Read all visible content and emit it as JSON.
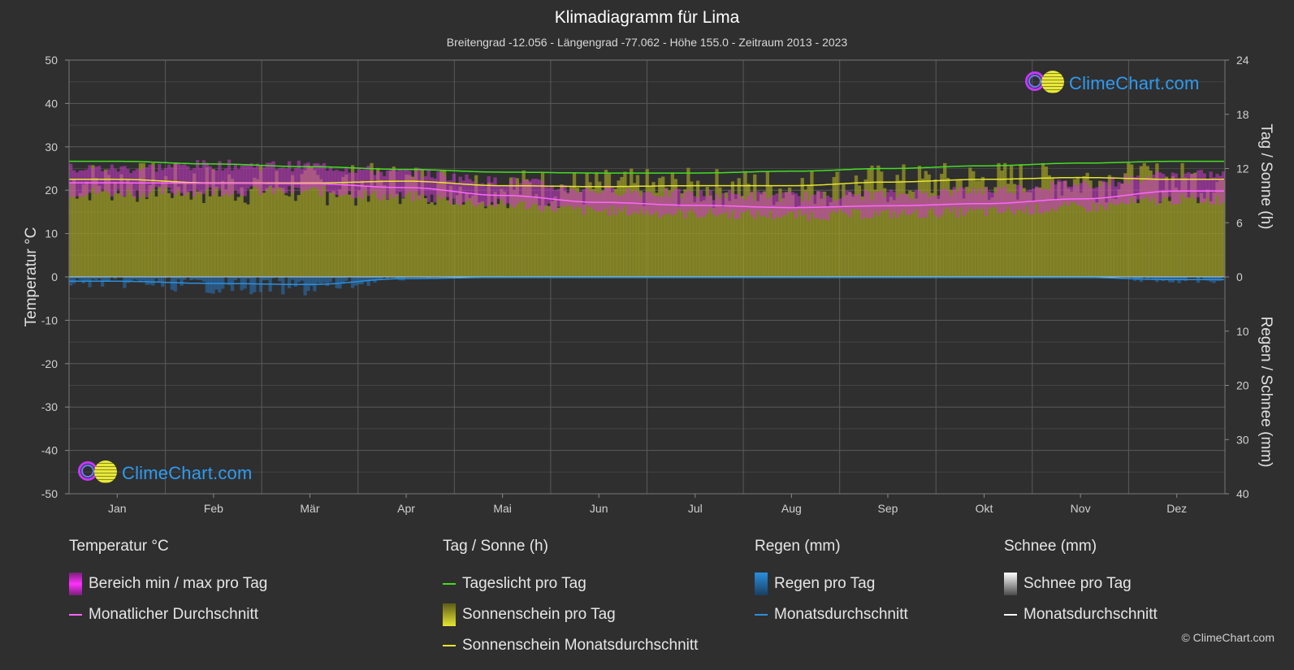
{
  "chart_data": {
    "type": "area",
    "title": "Klimadiagramm für Lima",
    "subtitle": "Breitengrad -12.056 - Längengrad -77.062 - Höhe 155.0 - Zeitraum 2013 - 2023",
    "categories": [
      "Jan",
      "Feb",
      "Mär",
      "Apr",
      "Mai",
      "Jun",
      "Jul",
      "Aug",
      "Sep",
      "Okt",
      "Nov",
      "Dez"
    ],
    "y_left": {
      "label": "Temperatur °C",
      "range": [
        -50,
        50
      ],
      "ticks": [
        "50",
        "40",
        "30",
        "20",
        "10",
        "0",
        "-10",
        "-20",
        "-30",
        "-40",
        "-50"
      ]
    },
    "y_right_top": {
      "label": "Tag / Sonne (h)",
      "range": [
        0,
        24
      ],
      "ticks": [
        "24",
        "18",
        "12",
        "6",
        "0"
      ]
    },
    "y_right_bottom": {
      "label": "Regen / Schnee (mm)",
      "range": [
        0,
        40
      ],
      "ticks": [
        "10",
        "20",
        "30",
        "40"
      ]
    },
    "series": [
      {
        "name": "Tageslicht pro Tag",
        "axis": "sun_h",
        "color": "#44dd22",
        "values": [
          12.8,
          12.5,
          12.2,
          11.9,
          11.6,
          11.5,
          11.5,
          11.7,
          12.0,
          12.3,
          12.6,
          12.8
        ]
      },
      {
        "name": "Sonnenschein Monatsdurchschnitt",
        "axis": "sun_h",
        "color": "#e6e630",
        "values": [
          10.8,
          10.4,
          10.4,
          10.6,
          10.1,
          10.0,
          10.1,
          10.1,
          10.5,
          10.8,
          11.0,
          10.8
        ]
      },
      {
        "name": "Monatlicher Durchschnitt",
        "axis": "temp_c",
        "color": "#ff66ff",
        "values": [
          21.7,
          21.6,
          21.5,
          20.6,
          18.8,
          17.2,
          16.5,
          16.0,
          16.4,
          16.9,
          18.0,
          19.8
        ]
      },
      {
        "name": "Bereich min / max pro Tag",
        "axis": "temp_c",
        "color": "#d43ad4",
        "max": [
          25.0,
          25.8,
          25.6,
          24.0,
          22.0,
          20.0,
          19.0,
          18.6,
          19.0,
          20.0,
          21.5,
          23.5
        ],
        "min": [
          19.5,
          19.8,
          19.8,
          18.5,
          16.8,
          15.2,
          14.6,
          14.2,
          14.5,
          15.0,
          16.0,
          17.8
        ]
      },
      {
        "name": "Regen Monatsdurchschnitt",
        "axis": "rain_mm",
        "color": "#2a8fe0",
        "values": [
          0.8,
          1.2,
          1.4,
          0.3,
          0.1,
          0.1,
          0.1,
          0.1,
          0.1,
          0.1,
          0.1,
          0.5
        ]
      },
      {
        "name": "Schnee Monatsdurchschnitt",
        "axis": "rain_mm",
        "color": "#ffffff",
        "values": [
          0,
          0,
          0,
          0,
          0,
          0,
          0,
          0,
          0,
          0,
          0,
          0
        ]
      }
    ],
    "grid": true
  },
  "legend": {
    "temp": {
      "title": "Temperatur °C",
      "items": [
        "Bereich min / max pro Tag",
        "Monatlicher Durchschnitt"
      ]
    },
    "sun": {
      "title": "Tag / Sonne (h)",
      "items": [
        "Tageslicht pro Tag",
        "Sonnenschein pro Tag",
        "Sonnenschein Monatsdurchschnitt"
      ]
    },
    "rain": {
      "title": "Regen (mm)",
      "items": [
        "Regen pro Tag",
        "Monatsdurchschnitt"
      ]
    },
    "snow": {
      "title": "Schnee (mm)",
      "items": [
        "Schnee pro Tag",
        "Monatsdurchschnitt"
      ]
    }
  },
  "brand": {
    "logo_text": "ClimeChart.com",
    "copyright": "© ClimeChart.com"
  },
  "colors": {
    "background": "#2f2f2f",
    "sunshine_fill": "#9a9a25",
    "temp_band": "#c93ac9",
    "rain": "#2a8fe0",
    "daylight": "#44dd22"
  }
}
